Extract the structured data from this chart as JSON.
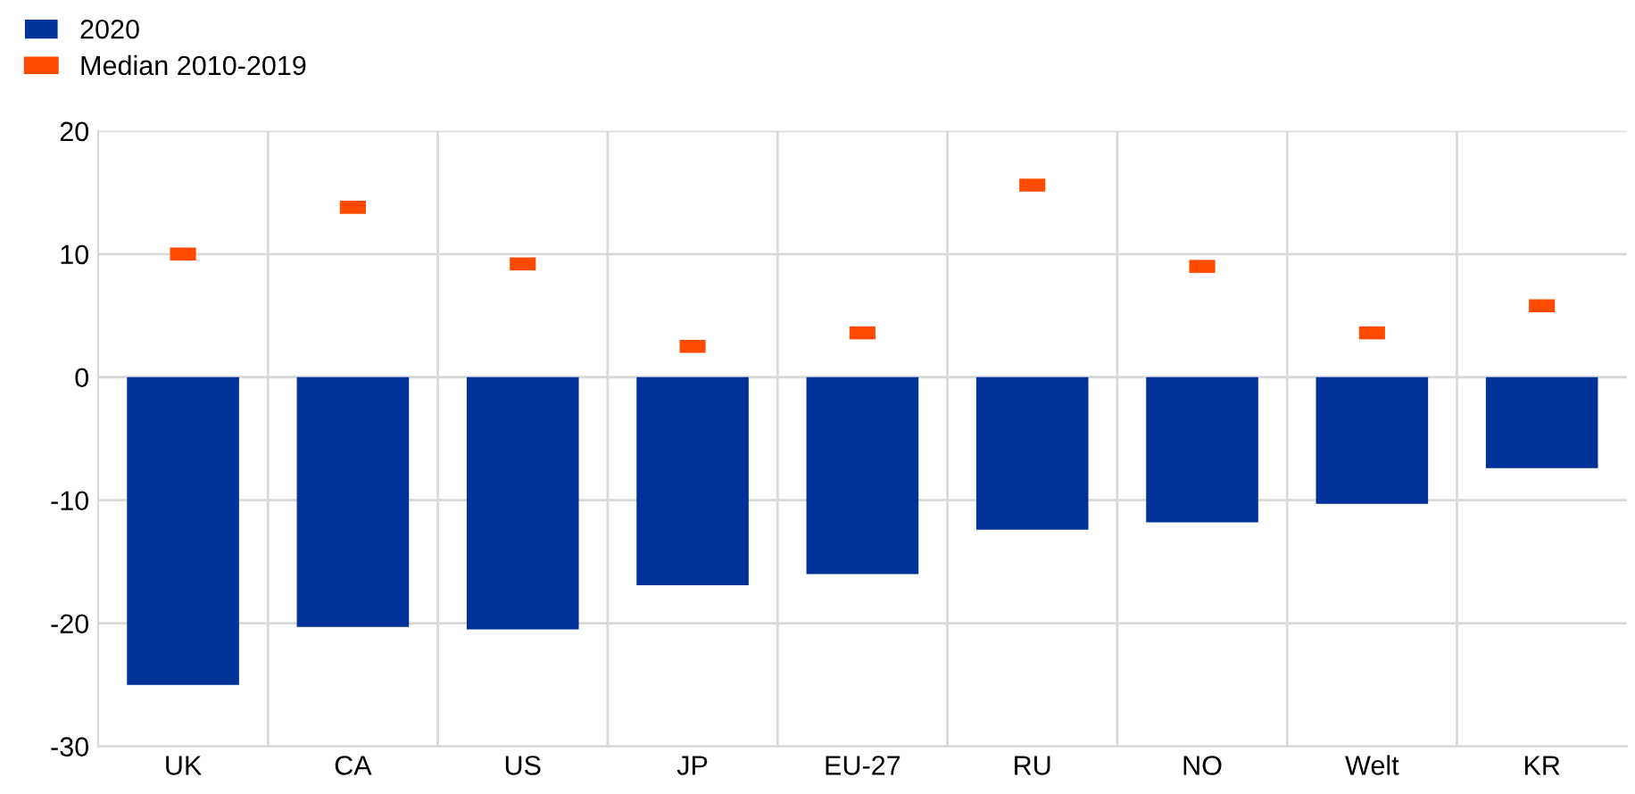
{
  "chart_data": {
    "type": "bar",
    "categories": [
      "UK",
      "CA",
      "US",
      "JP",
      "EU-27",
      "RU",
      "NO",
      "Welt",
      "KR"
    ],
    "series": [
      {
        "name": "2020",
        "type": "bar",
        "color": "#003299",
        "values": [
          -25.0,
          -20.3,
          -20.5,
          -16.9,
          -16.0,
          -12.4,
          -11.8,
          -10.3,
          -7.4
        ]
      },
      {
        "name": "Median 2010-2019",
        "type": "scatter",
        "color": "#ff4b00",
        "values": [
          10.0,
          13.8,
          9.2,
          2.5,
          3.6,
          15.6,
          9.0,
          3.6,
          5.8
        ]
      }
    ],
    "ylim": [
      -30,
      20
    ],
    "yticks": [
      -30,
      -20,
      -10,
      0,
      10,
      20
    ],
    "grid": true,
    "legend": "top left"
  }
}
